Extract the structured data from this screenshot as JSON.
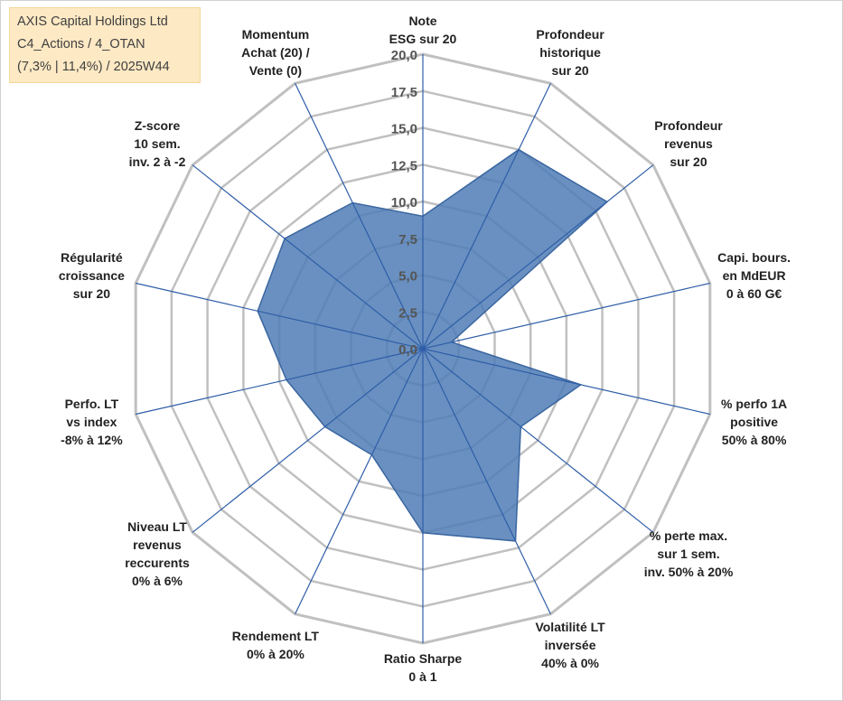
{
  "header": {
    "line1": "AXIS Capital Holdings Ltd",
    "line2": "C4_Actions / 4_OTAN",
    "line3": "(7,3% | 11,4%) / 2025W44"
  },
  "colors": {
    "fill": "#4f7db5",
    "stroke": "#3a66a0",
    "spoke": "#2f5ea8",
    "grid": "#c0c0c0",
    "header_bg": "#fde9c4"
  },
  "chart_data": {
    "type": "radar",
    "title": "AXIS Capital Holdings Ltd",
    "rmin": 0,
    "rmax": 20,
    "tick_step": 2.5,
    "tick_labels": [
      "0,0",
      "2,5",
      "5,0",
      "7,5",
      "10,0",
      "12,5",
      "15,0",
      "17,5",
      "20,0"
    ],
    "axes": [
      {
        "label": [
          "Note",
          "ESG sur 20"
        ],
        "value": 9.0
      },
      {
        "label": [
          "Profondeur",
          "historique",
          "sur 20"
        ],
        "value": 15.0
      },
      {
        "label": [
          "Profondeur",
          "revenus",
          "sur 20"
        ],
        "value": 16.0
      },
      {
        "label": [
          "Capi. bours.",
          "en MdEUR",
          "0 à 60 G€"
        ],
        "value": 2.0
      },
      {
        "label": [
          "% perfo 1A",
          "positive",
          "50% à 80%"
        ],
        "value": 11.0
      },
      {
        "label": [
          "% perte max.",
          "sur 1 sem.",
          "inv. 50% à 20%"
        ],
        "value": 8.5
      },
      {
        "label": [
          "Volatilité LT",
          "inversée",
          "40% à 0%"
        ],
        "value": 14.5
      },
      {
        "label": [
          "Ratio Sharpe",
          "0 à 1"
        ],
        "value": 12.5
      },
      {
        "label": [
          "Rendement LT",
          "0% à 20%"
        ],
        "value": 8.0
      },
      {
        "label": [
          "Niveau LT",
          "revenus",
          "reccurents",
          "0% à 6%"
        ],
        "value": 8.5
      },
      {
        "label": [
          "Perfo. LT",
          "vs index",
          "-8% à 12%"
        ],
        "value": 9.5
      },
      {
        "label": [
          "Régularité",
          "croissance",
          "sur 20"
        ],
        "value": 11.5
      },
      {
        "label": [
          "Z-score",
          "10 sem.",
          "inv. 2 à -2"
        ],
        "value": 12.0
      },
      {
        "label": [
          "Momentum",
          "Achat (20) /",
          "Vente (0)"
        ],
        "value": 11.0
      }
    ]
  }
}
